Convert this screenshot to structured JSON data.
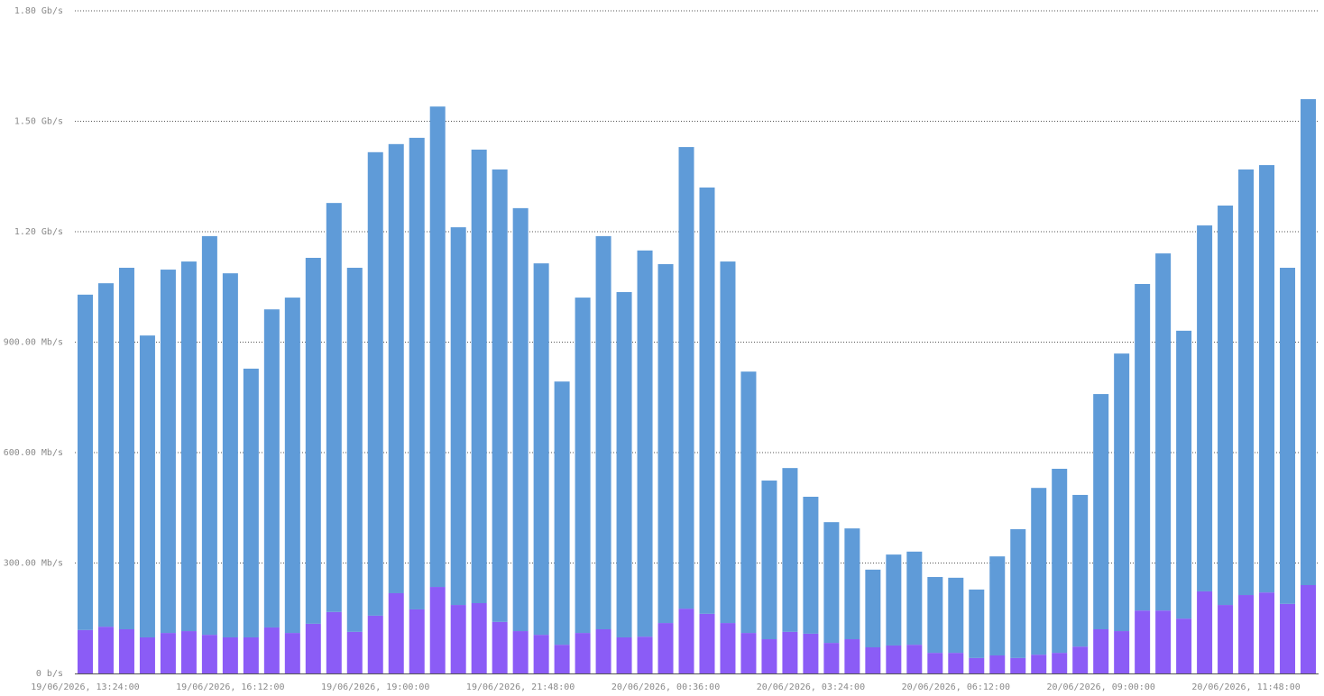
{
  "chart_data": {
    "type": "stacked-bar",
    "categories": [
      "19/06/2026, 13:24:00",
      null,
      null,
      null,
      null,
      null,
      null,
      "19/06/2026, 16:12:00",
      null,
      null,
      null,
      null,
      null,
      null,
      "19/06/2026, 19:00:00",
      null,
      null,
      null,
      null,
      null,
      null,
      "19/06/2026, 21:48:00",
      null,
      null,
      null,
      null,
      null,
      null,
      "20/06/2026, 00:36:00",
      null,
      null,
      null,
      null,
      null,
      null,
      "20/06/2026, 03:24:00",
      null,
      null,
      null,
      null,
      null,
      null,
      "20/06/2026, 06:12:00",
      null,
      null,
      null,
      null,
      null,
      null,
      "20/06/2026, 09:00:00",
      null,
      null,
      null,
      null,
      null,
      null,
      "20/06/2026, 11:48:00",
      null,
      null,
      null
    ],
    "series": [
      {
        "color": "#8b5cf6",
        "values": [
          118,
          127,
          120,
          98,
          110,
          115,
          105,
          98,
          98,
          125,
          110,
          135,
          167,
          113,
          157,
          218,
          174,
          235,
          186,
          191,
          140,
          115,
          105,
          78,
          110,
          120,
          98,
          100,
          137,
          176,
          162,
          137,
          110,
          93,
          113,
          108,
          83,
          93,
          71,
          76,
          78,
          56,
          56,
          42,
          49,
          42,
          51,
          56,
          73,
          120,
          115,
          171,
          171,
          149,
          223,
          186,
          213,
          220,
          189,
          240
        ]
      },
      {
        "color": "#5f9bd8",
        "values": [
          911,
          933,
          982,
          820,
          987,
          1004,
          1083,
          989,
          730,
          864,
          911,
          994,
          1111,
          989,
          1259,
          1220,
          1281,
          1305,
          1026,
          1232,
          1229,
          1149,
          1009,
          715,
          911,
          1068,
          938,
          1049,
          975,
          1254,
          1158,
          982,
          710,
          431,
          445,
          372,
          328,
          301,
          211,
          247,
          253,
          206,
          204,
          186,
          269,
          350,
          453,
          500,
          412,
          639,
          754,
          887,
          970,
          782,
          994,
          1085,
          1156,
          1161,
          913,
          1320
        ]
      }
    ],
    "ylim": [
      0,
      1800
    ],
    "yticks": [
      {
        "value": 0,
        "label": "0 b/s"
      },
      {
        "value": 300,
        "label": "300.00 Mb/s"
      },
      {
        "value": 600,
        "label": "600.00 Mb/s"
      },
      {
        "value": 900,
        "label": "900.00 Mb/s"
      },
      {
        "value": 1200,
        "label": "1.20 Gb/s"
      },
      {
        "value": 1500,
        "label": "1.50 Gb/s"
      },
      {
        "value": 1800,
        "label": "1.80 Gb/s"
      }
    ],
    "grid": true
  }
}
